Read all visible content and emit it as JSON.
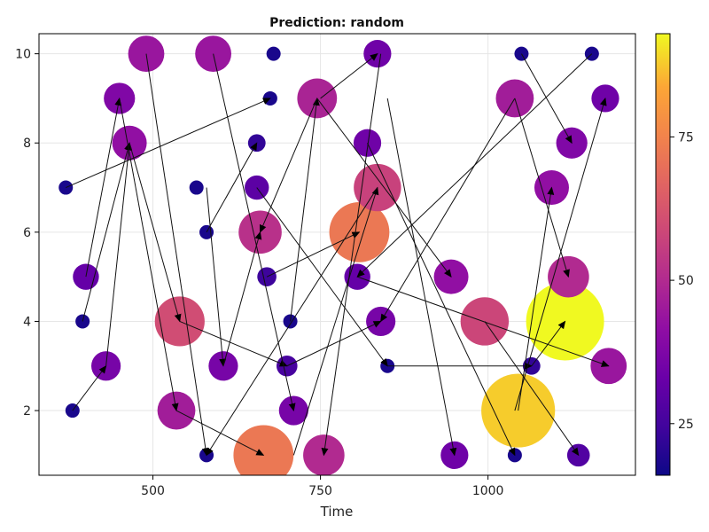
{
  "chart_data": {
    "type": "scatter",
    "title": "Prediction: random",
    "xlabel": "Time",
    "ylabel": "",
    "xlim": [
      330,
      1220
    ],
    "ylim": [
      0.55,
      10.45
    ],
    "x_ticks": [
      500,
      750,
      1000
    ],
    "y_ticks": [
      2,
      4,
      6,
      8,
      10
    ],
    "grid": true,
    "colorbar": {
      "colormap": "plasma",
      "range": [
        16,
        93
      ],
      "ticks": [
        25,
        50,
        75
      ]
    },
    "points": [
      {
        "x": 370,
        "y": 7,
        "value": 18
      },
      {
        "x": 380,
        "y": 2,
        "value": 18
      },
      {
        "x": 395,
        "y": 4,
        "value": 18
      },
      {
        "x": 400,
        "y": 5,
        "value": 32
      },
      {
        "x": 430,
        "y": 3,
        "value": 36
      },
      {
        "x": 450,
        "y": 9,
        "value": 38
      },
      {
        "x": 465,
        "y": 8,
        "value": 42
      },
      {
        "x": 490,
        "y": 10,
        "value": 44
      },
      {
        "x": 535,
        "y": 2,
        "value": 46
      },
      {
        "x": 540,
        "y": 4,
        "value": 60
      },
      {
        "x": 565,
        "y": 7,
        "value": 18
      },
      {
        "x": 580,
        "y": 6,
        "value": 18
      },
      {
        "x": 580,
        "y": 1,
        "value": 18
      },
      {
        "x": 590,
        "y": 10,
        "value": 44
      },
      {
        "x": 605,
        "y": 3,
        "value": 36
      },
      {
        "x": 655,
        "y": 8,
        "value": 22
      },
      {
        "x": 655,
        "y": 7,
        "value": 30
      },
      {
        "x": 660,
        "y": 6,
        "value": 52
      },
      {
        "x": 665,
        "y": 1,
        "value": 72
      },
      {
        "x": 670,
        "y": 5,
        "value": 24
      },
      {
        "x": 675,
        "y": 9,
        "value": 18
      },
      {
        "x": 680,
        "y": 10,
        "value": 18
      },
      {
        "x": 700,
        "y": 3,
        "value": 26
      },
      {
        "x": 705,
        "y": 4,
        "value": 18
      },
      {
        "x": 710,
        "y": 2,
        "value": 36
      },
      {
        "x": 745,
        "y": 9,
        "value": 48
      },
      {
        "x": 755,
        "y": 1,
        "value": 50
      },
      {
        "x": 805,
        "y": 5,
        "value": 32
      },
      {
        "x": 808,
        "y": 6,
        "value": 72
      },
      {
        "x": 820,
        "y": 8,
        "value": 34
      },
      {
        "x": 835,
        "y": 10,
        "value": 34
      },
      {
        "x": 835,
        "y": 7,
        "value": 57
      },
      {
        "x": 840,
        "y": 4,
        "value": 36
      },
      {
        "x": 850,
        "y": 3,
        "value": 18
      },
      {
        "x": 945,
        "y": 5,
        "value": 42
      },
      {
        "x": 950,
        "y": 1,
        "value": 34
      },
      {
        "x": 995,
        "y": 4,
        "value": 58
      },
      {
        "x": 1040,
        "y": 9,
        "value": 46
      },
      {
        "x": 1040,
        "y": 1,
        "value": 18
      },
      {
        "x": 1045,
        "y": 2,
        "value": 88
      },
      {
        "x": 1050,
        "y": 10,
        "value": 18
      },
      {
        "x": 1065,
        "y": 3,
        "value": 22
      },
      {
        "x": 1095,
        "y": 7,
        "value": 42
      },
      {
        "x": 1115,
        "y": 4,
        "value": 93
      },
      {
        "x": 1120,
        "y": 5,
        "value": 50
      },
      {
        "x": 1125,
        "y": 8,
        "value": 38
      },
      {
        "x": 1135,
        "y": 1,
        "value": 28
      },
      {
        "x": 1155,
        "y": 10,
        "value": 18
      },
      {
        "x": 1175,
        "y": 9,
        "value": 34
      },
      {
        "x": 1180,
        "y": 3,
        "value": 44
      }
    ],
    "arrows": [
      {
        "from": [
          380,
          2
        ],
        "to": [
          430,
          3
        ]
      },
      {
        "from": [
          395,
          4
        ],
        "to": [
          465,
          8
        ]
      },
      {
        "from": [
          400,
          5
        ],
        "to": [
          450,
          9
        ]
      },
      {
        "from": [
          430,
          3
        ],
        "to": [
          465,
          8
        ]
      },
      {
        "from": [
          370,
          7
        ],
        "to": [
          675,
          9
        ]
      },
      {
        "from": [
          450,
          9
        ],
        "to": [
          535,
          2
        ]
      },
      {
        "from": [
          465,
          8
        ],
        "to": [
          540,
          4
        ]
      },
      {
        "from": [
          490,
          10
        ],
        "to": [
          580,
          1
        ]
      },
      {
        "from": [
          535,
          2
        ],
        "to": [
          665,
          1
        ]
      },
      {
        "from": [
          540,
          4
        ],
        "to": [
          700,
          3
        ]
      },
      {
        "from": [
          580,
          6
        ],
        "to": [
          655,
          8
        ]
      },
      {
        "from": [
          580,
          7
        ],
        "to": [
          605,
          3
        ]
      },
      {
        "from": [
          590,
          10
        ],
        "to": [
          710,
          2
        ]
      },
      {
        "from": [
          605,
          3
        ],
        "to": [
          660,
          6
        ]
      },
      {
        "from": [
          655,
          7
        ],
        "to": [
          850,
          3
        ]
      },
      {
        "from": [
          670,
          5
        ],
        "to": [
          808,
          6
        ]
      },
      {
        "from": [
          700,
          3
        ],
        "to": [
          840,
          4
        ]
      },
      {
        "from": [
          705,
          4
        ],
        "to": [
          745,
          9
        ]
      },
      {
        "from": [
          710,
          1
        ],
        "to": [
          835,
          7
        ]
      },
      {
        "from": [
          745,
          9
        ],
        "to": [
          660,
          6
        ]
      },
      {
        "from": [
          745,
          9
        ],
        "to": [
          945,
          5
        ]
      },
      {
        "from": [
          840,
          10
        ],
        "to": [
          755,
          1
        ]
      },
      {
        "from": [
          750,
          9
        ],
        "to": [
          835,
          10
        ]
      },
      {
        "from": [
          835,
          7
        ],
        "to": [
          580,
          1
        ]
      },
      {
        "from": [
          820,
          8
        ],
        "to": [
          1040,
          1
        ]
      },
      {
        "from": [
          850,
          9
        ],
        "to": [
          950,
          1
        ]
      },
      {
        "from": [
          850,
          3
        ],
        "to": [
          1065,
          3
        ]
      },
      {
        "from": [
          805,
          5
        ],
        "to": [
          1180,
          3
        ]
      },
      {
        "from": [
          995,
          4
        ],
        "to": [
          1135,
          1
        ]
      },
      {
        "from": [
          1040,
          9
        ],
        "to": [
          840,
          4
        ]
      },
      {
        "from": [
          1040,
          9
        ],
        "to": [
          1120,
          5
        ]
      },
      {
        "from": [
          1050,
          10
        ],
        "to": [
          1125,
          8
        ]
      },
      {
        "from": [
          1065,
          3
        ],
        "to": [
          1115,
          4
        ]
      },
      {
        "from": [
          1040,
          2
        ],
        "to": [
          1175,
          9
        ]
      },
      {
        "from": [
          1045,
          2
        ],
        "to": [
          1095,
          7
        ]
      },
      {
        "from": [
          1155,
          10
        ],
        "to": [
          805,
          5
        ]
      }
    ]
  }
}
